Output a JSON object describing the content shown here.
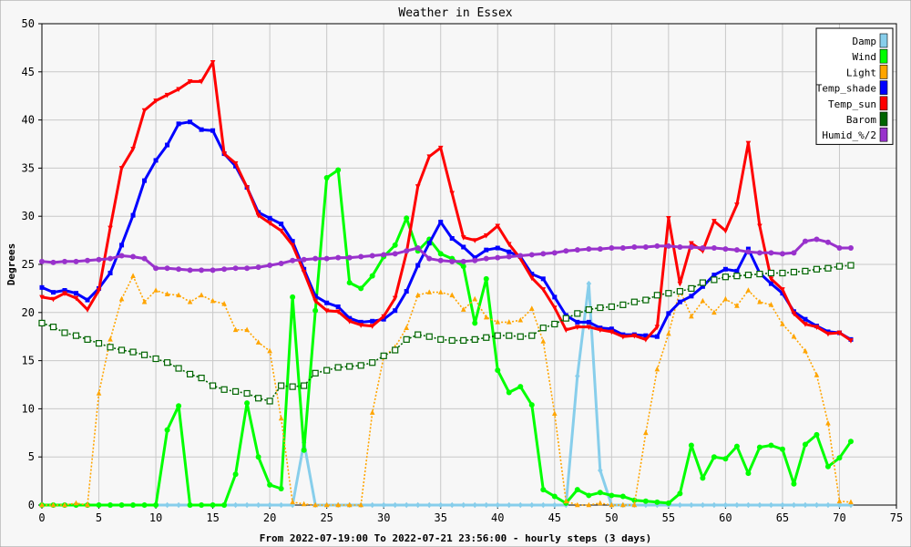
{
  "chart_data": {
    "type": "line",
    "title": "Weather in Essex",
    "xlabel": "From 2022-07-19:00 To 2022-07-21 23:56:00 - hourly steps (3 days)",
    "ylabel": "Degrees",
    "xlim": [
      0,
      75
    ],
    "ylim": [
      0,
      50
    ],
    "x_ticks": [
      0,
      5,
      10,
      15,
      20,
      25,
      30,
      35,
      40,
      45,
      50,
      55,
      60,
      65,
      70,
      75
    ],
    "y_ticks": [
      0,
      5,
      10,
      15,
      20,
      25,
      30,
      35,
      40,
      45,
      50
    ],
    "grid": true,
    "legend_position": "top-right",
    "series": [
      {
        "name": "Damp",
        "color": "#87ceeb",
        "marker": "diamond",
        "dash": "none",
        "values": [
          0,
          0,
          0,
          0,
          0,
          0,
          0,
          0,
          0,
          0,
          0,
          0,
          0,
          0,
          0,
          0,
          0,
          0,
          0,
          0,
          0,
          0,
          0,
          6.5,
          0,
          0,
          0,
          0,
          0,
          0,
          0,
          0,
          0,
          0,
          0,
          0,
          0,
          0,
          0,
          0,
          0,
          0,
          0,
          0,
          0,
          0,
          0,
          13.4,
          23,
          3.6,
          0,
          0,
          0,
          0,
          0,
          0,
          0,
          0,
          0,
          0,
          0,
          0,
          0,
          0,
          0,
          0,
          0,
          0,
          0,
          0,
          0,
          0
        ]
      },
      {
        "name": "Wind",
        "color": "#00ff00",
        "marker": "circle",
        "dash": "none",
        "values": [
          0,
          0,
          0,
          0,
          0,
          0,
          0,
          0,
          0,
          0,
          0,
          7.8,
          10.3,
          0,
          0,
          0,
          0,
          3.2,
          10.6,
          5,
          2.1,
          1.7,
          21.6,
          5.7,
          20.2,
          34,
          34.8,
          23.1,
          22.5,
          23.8,
          25.8,
          27,
          29.8,
          26.4,
          27.6,
          26.1,
          25.6,
          24.8,
          18.9,
          23.5,
          14,
          11.7,
          12.3,
          10.4,
          1.6,
          0.9,
          0.2,
          1.6,
          1,
          1.3,
          1,
          0.9,
          0.5,
          0.4,
          0.3,
          0.2,
          1.2,
          6.2,
          2.8,
          5,
          4.8,
          6.1,
          3.3,
          6,
          6.2,
          5.8,
          2.2,
          6.3,
          7.3,
          4,
          4.9,
          6.6
        ]
      },
      {
        "name": "Light",
        "color": "#ffa500",
        "marker": "triangle",
        "dash": "dot",
        "values": [
          0,
          0,
          0,
          0.2,
          0,
          11.6,
          17.2,
          21.4,
          23.8,
          21.1,
          22.3,
          21.9,
          21.8,
          21.1,
          21.8,
          21.2,
          20.9,
          18.2,
          18.2,
          16.9,
          16,
          9,
          0.3,
          0.1,
          0,
          0,
          0,
          0,
          0,
          9.6,
          15.4,
          16.4,
          18.4,
          21.8,
          22.1,
          22.1,
          21.8,
          20.3,
          21.4,
          19.5,
          19,
          19,
          19.2,
          20.4,
          17,
          9.5,
          0.4,
          0,
          0,
          0.2,
          0,
          0,
          0,
          7.5,
          14.1,
          17.8,
          22.3,
          19.6,
          21.2,
          20,
          21.4,
          20.7,
          22.3,
          21.1,
          20.8,
          18.8,
          17.5,
          16,
          13.5,
          8.5,
          0.4,
          0.3
        ]
      },
      {
        "name": "Temp_shade",
        "color": "#0000ff",
        "marker": "square",
        "dash": "none",
        "values": [
          22.6,
          22.1,
          22.3,
          22,
          21.3,
          22.5,
          24.1,
          27,
          30.1,
          33.7,
          35.8,
          37.4,
          39.6,
          39.8,
          39,
          38.9,
          36.5,
          35.2,
          33,
          30.4,
          29.8,
          29.2,
          27.4,
          24.5,
          21.7,
          21,
          20.6,
          19.4,
          19,
          19.1,
          19.3,
          20.2,
          22.2,
          24.9,
          27.2,
          29.4,
          27.7,
          26.8,
          25.7,
          26.5,
          26.7,
          26.3,
          25.8,
          24,
          23.5,
          21.6,
          19.7,
          19,
          19,
          18.4,
          18.3,
          17.7,
          17.7,
          17.6,
          17.5,
          19.9,
          21.1,
          21.7,
          22.7,
          23.9,
          24.5,
          24.3,
          26.6,
          24.1,
          23,
          22,
          20.1,
          19.3,
          18.6,
          18,
          17.9,
          17.2
        ]
      },
      {
        "name": "Temp_sun",
        "color": "#ff0000",
        "marker": "triangle-down",
        "dash": "none",
        "values": [
          21.6,
          21.4,
          22,
          21.5,
          20.3,
          22.3,
          28.8,
          35,
          37,
          41,
          42,
          42.6,
          43.2,
          44,
          44,
          46,
          36.5,
          35.5,
          33,
          30.1,
          29.3,
          28.5,
          27,
          24.2,
          21.2,
          20.2,
          20.1,
          19.1,
          18.7,
          18.6,
          19.6,
          21.5,
          26.2,
          33.1,
          36.2,
          37.1,
          32.4,
          27.8,
          27.5,
          28,
          29,
          27.1,
          25.6,
          23.6,
          22.4,
          20.5,
          18.2,
          18.5,
          18.5,
          18.2,
          18,
          17.5,
          17.6,
          17.2,
          18.5,
          29.8,
          23,
          27.2,
          26.4,
          29.5,
          28.5,
          31.2,
          37.6,
          29,
          23.5,
          22.4,
          19.9,
          18.8,
          18.5,
          17.8,
          17.9,
          17.1
        ]
      },
      {
        "name": "Barom",
        "color": "#006400",
        "marker": "square-open",
        "dash": "dot",
        "values": [
          18.9,
          18.5,
          17.9,
          17.6,
          17.2,
          16.8,
          16.4,
          16.1,
          15.9,
          15.6,
          15.2,
          14.8,
          14.2,
          13.6,
          13.2,
          12.4,
          12,
          11.8,
          11.6,
          11.1,
          10.8,
          12.4,
          12.3,
          12.4,
          13.7,
          14,
          14.3,
          14.4,
          14.5,
          14.8,
          15.5,
          16.1,
          17.2,
          17.7,
          17.5,
          17.2,
          17.1,
          17.1,
          17.2,
          17.4,
          17.6,
          17.6,
          17.5,
          17.6,
          18.4,
          18.8,
          19.4,
          19.9,
          20.3,
          20.5,
          20.6,
          20.8,
          21.1,
          21.3,
          21.8,
          22,
          22.2,
          22.5,
          23.1,
          23.4,
          23.7,
          23.8,
          23.9,
          24,
          24.1,
          24.1,
          24.2,
          24.3,
          24.5,
          24.6,
          24.8,
          24.9
        ]
      },
      {
        "name": "Humid_%/2",
        "color": "#9932cc",
        "marker": "circle",
        "dash": "none",
        "values": [
          25.3,
          25.2,
          25.3,
          25.3,
          25.4,
          25.5,
          25.6,
          25.9,
          25.8,
          25.6,
          24.6,
          24.6,
          24.5,
          24.4,
          24.4,
          24.4,
          24.5,
          24.6,
          24.6,
          24.7,
          24.9,
          25.1,
          25.4,
          25.5,
          25.6,
          25.6,
          25.7,
          25.7,
          25.8,
          25.9,
          26,
          26.1,
          26.4,
          26.7,
          25.6,
          25.4,
          25.3,
          25.3,
          25.4,
          25.6,
          25.7,
          25.8,
          25.9,
          26,
          26.1,
          26.2,
          26.4,
          26.5,
          26.6,
          26.6,
          26.7,
          26.7,
          26.8,
          26.8,
          26.9,
          26.9,
          26.8,
          26.8,
          26.7,
          26.7,
          26.6,
          26.5,
          26.3,
          26.2,
          26.2,
          26.1,
          26.2,
          27.4,
          27.6,
          27.3,
          26.7,
          26.7
        ]
      }
    ]
  }
}
